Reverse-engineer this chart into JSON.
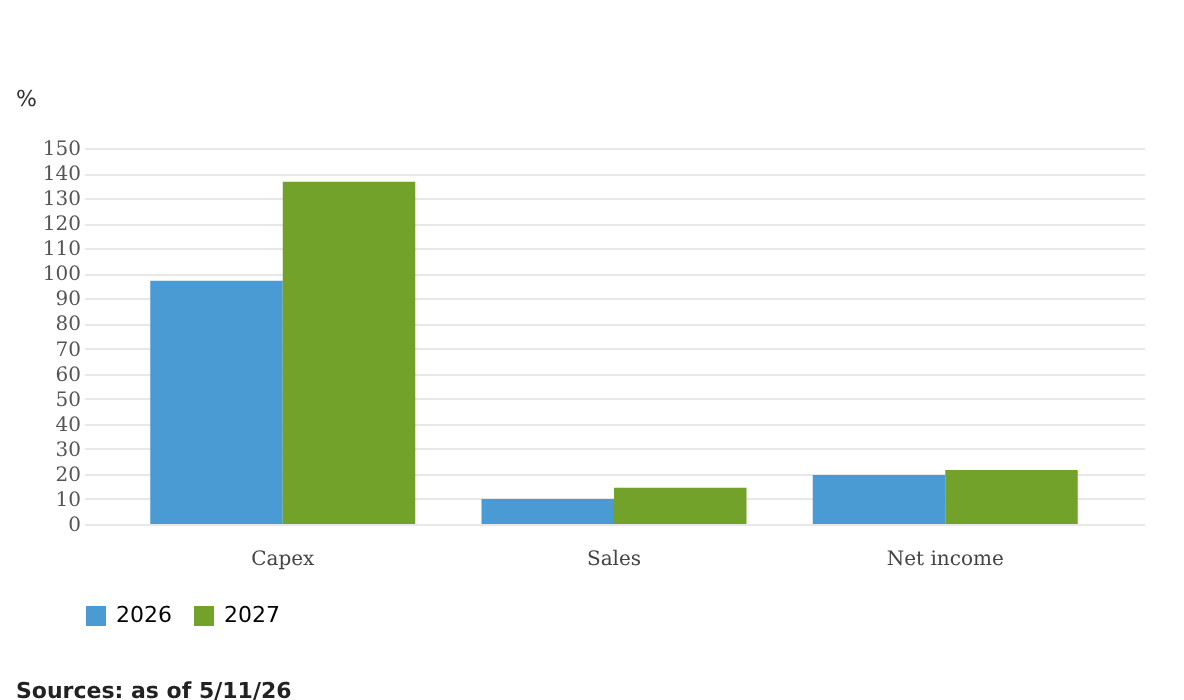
{
  "chart_data": {
    "type": "bar",
    "ylabel": "%",
    "categories": [
      "Capex",
      "Sales",
      "Net income"
    ],
    "series": [
      {
        "name": "2026",
        "color": "#4a9bd4",
        "values": [
          97,
          10,
          19.5
        ]
      },
      {
        "name": "2027",
        "color": "#73a22b",
        "values": [
          136.5,
          14.5,
          21.5
        ]
      }
    ],
    "ylim": [
      0,
      150
    ],
    "yticks": [
      0,
      10,
      20,
      30,
      40,
      50,
      60,
      70,
      80,
      90,
      100,
      110,
      120,
      130,
      140,
      150
    ],
    "grid": "y",
    "legend": "bottom",
    "annotations": [
      "Sources: as of 5/11/26"
    ]
  }
}
